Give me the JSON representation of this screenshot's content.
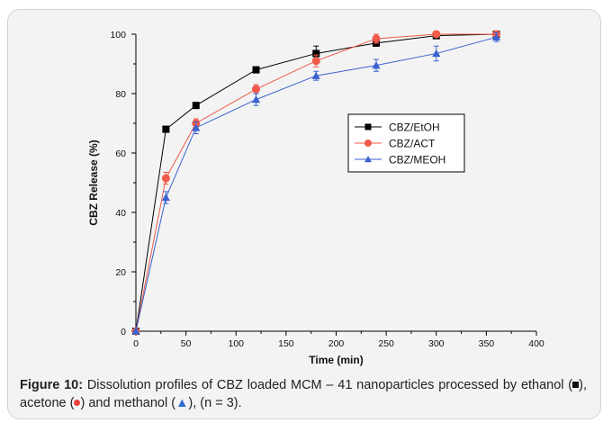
{
  "chart_data": {
    "type": "line",
    "xlabel": "Time (min)",
    "ylabel": "CBZ Release (%)",
    "xlim": [
      0,
      400
    ],
    "ylim": [
      0,
      100
    ],
    "xticks": [
      0,
      50,
      100,
      150,
      200,
      250,
      300,
      350,
      400
    ],
    "yticks": [
      0,
      20,
      40,
      60,
      80,
      100
    ],
    "grid": false,
    "legend_position": "center-right",
    "x": [
      0,
      30,
      60,
      120,
      180,
      240,
      300,
      360
    ],
    "series": [
      {
        "name": "CBZ/EtOH",
        "marker": "square",
        "color": "#000000",
        "values": [
          0,
          68,
          76,
          88,
          93.5,
          97,
          99.5,
          100
        ],
        "errors": [
          0.5,
          1.0,
          1.0,
          1.0,
          2.5,
          1.0,
          1.0,
          0.5
        ]
      },
      {
        "name": "CBZ/ACT",
        "marker": "circle",
        "color": "#f05a4a",
        "values": [
          0,
          51.5,
          70,
          81.5,
          91,
          98.5,
          100,
          100
        ],
        "errors": [
          0.5,
          2.0,
          1.5,
          1.5,
          2.0,
          1.5,
          1.0,
          0.5
        ]
      },
      {
        "name": "CBZ/MEOH",
        "marker": "triangle",
        "color": "#3a62d0",
        "values": [
          0,
          45,
          68.5,
          78,
          86,
          89.5,
          93.5,
          99
        ],
        "errors": [
          0.5,
          2.0,
          2.0,
          2.0,
          1.5,
          2.0,
          2.5,
          1.5
        ]
      }
    ]
  },
  "caption": {
    "label": "Figure 10:",
    "text_1": " Dissolution profiles of CBZ loaded MCM – 41 nanoparticles processed by ethanol (",
    "text_2": "), acetone (",
    "text_3": ") and methanol (",
    "tri_glyph": "▲",
    "text_4": "), (n = 3)."
  }
}
